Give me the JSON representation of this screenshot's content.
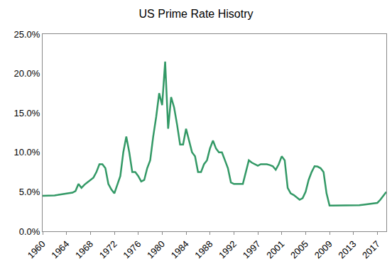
{
  "chart_data": {
    "type": "line",
    "title": "US Prime Rate Hisotry",
    "categories": [
      "1960",
      null,
      null,
      null,
      null,
      null,
      null,
      null,
      "1964",
      null,
      null,
      null,
      null,
      null,
      null,
      null,
      "1968",
      null,
      null,
      null,
      null,
      null,
      null,
      null,
      "1972",
      null,
      null,
      null,
      null,
      null,
      null,
      null,
      "1976",
      null,
      null,
      null,
      null,
      null,
      null,
      null,
      "1980",
      null,
      null,
      null,
      null,
      null,
      null,
      null,
      "1984",
      null,
      null,
      null,
      null,
      null,
      null,
      null,
      "1988",
      null,
      null,
      null,
      null,
      null,
      null,
      null,
      "1992",
      null,
      null,
      null,
      null,
      null,
      null,
      null,
      "1997",
      null,
      null,
      null,
      null,
      null,
      null,
      null,
      "2001",
      null,
      null,
      null,
      null,
      null,
      null,
      null,
      "2005",
      null,
      null,
      null,
      null,
      null,
      null,
      null,
      "2009",
      null,
      null,
      null,
      null,
      null,
      null,
      null,
      "2013",
      null,
      null,
      null,
      null,
      null,
      null,
      null,
      "2017",
      null,
      null,
      null
    ],
    "values": [
      4.5,
      4.5,
      4.5,
      4.5,
      4.55,
      4.6,
      4.65,
      4.7,
      4.75,
      4.8,
      4.9,
      5.1,
      6.0,
      5.5,
      5.9,
      6.2,
      6.5,
      6.8,
      7.5,
      8.5,
      8.5,
      8.0,
      6.0,
      5.3,
      4.8,
      6.0,
      7.0,
      10.0,
      12.0,
      10.0,
      7.5,
      7.5,
      7.0,
      6.3,
      6.5,
      8.0,
      9.0,
      12.0,
      14.5,
      17.5,
      16.0,
      21.5,
      13.0,
      17.0,
      15.7,
      13.5,
      11.0,
      11.0,
      13.0,
      11.5,
      10.0,
      9.5,
      7.5,
      7.5,
      8.5,
      9.0,
      10.5,
      11.5,
      10.5,
      10.0,
      10.0,
      9.0,
      8.0,
      6.2,
      6.0,
      6.0,
      6.0,
      6.0,
      7.5,
      9.0,
      8.7,
      8.5,
      8.3,
      8.5,
      8.5,
      8.5,
      8.4,
      8.25,
      7.8,
      8.5,
      9.5,
      9.0,
      5.5,
      4.8,
      4.6,
      4.3,
      4.0,
      4.2,
      5.0,
      6.5,
      7.5,
      8.25,
      8.2,
      8.0,
      7.5,
      4.8,
      3.25,
      3.25,
      3.25,
      3.25,
      3.25,
      3.25,
      3.25,
      3.25,
      3.25,
      3.3,
      3.3,
      3.35,
      3.4,
      3.45,
      3.5,
      3.5,
      3.6,
      4.0,
      4.5,
      5.0
    ],
    "color": "#339966",
    "ylim": [
      0,
      25
    ],
    "yticks": [
      {
        "value": 0,
        "label": "0.0%"
      },
      {
        "value": 5,
        "label": "5.0%"
      },
      {
        "value": 10,
        "label": "10.0%"
      },
      {
        "value": 15,
        "label": "15.0%"
      },
      {
        "value": 20,
        "label": "20.0%"
      },
      {
        "value": 25,
        "label": "25.0%"
      }
    ],
    "grid": false
  }
}
